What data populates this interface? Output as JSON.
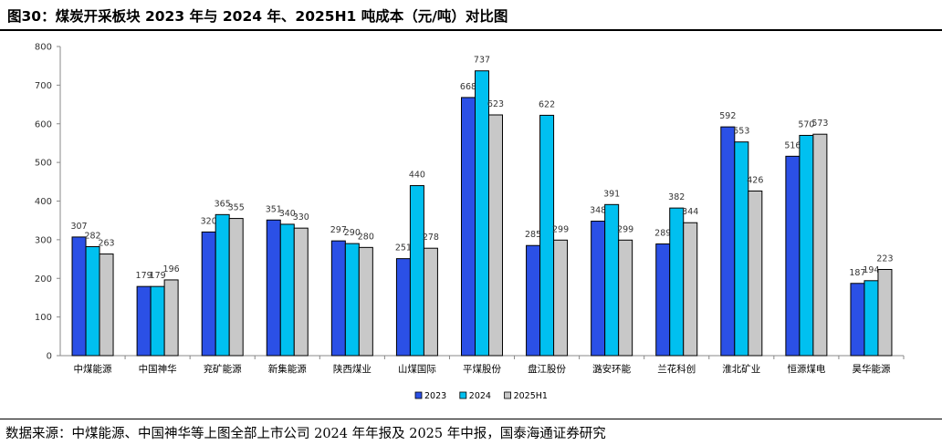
{
  "header": {
    "title": "图30：煤炭开采板块 2023 年与 2024 年、2025H1 吨成本（元/吨）对比图"
  },
  "footer": {
    "source": "数据来源：中煤能源、中国神华等上图全部上市公司 2024 年年报及 2025 年中报，国泰海通证券研究"
  },
  "colors": {
    "series": [
      "#2b50e6",
      "#00c0f0",
      "#c8c8c8"
    ],
    "stroke": "#000000"
  },
  "chart_data": {
    "type": "bar",
    "categories": [
      "中煤能源",
      "中国神华",
      "兖矿能源",
      "新集能源",
      "陕西煤业",
      "山煤国际",
      "平煤股份",
      "盘江股份",
      "潞安环能",
      "兰花科创",
      "淮北矿业",
      "恒源煤电",
      "昊华能源"
    ],
    "series": [
      {
        "name": "2023",
        "values": [
          307,
          179,
          320,
          351,
          297,
          251,
          668,
          285,
          348,
          289,
          592,
          516,
          187
        ]
      },
      {
        "name": "2024",
        "values": [
          282,
          179,
          365,
          340,
          290,
          440,
          737,
          622,
          391,
          382,
          553,
          570,
          194
        ]
      },
      {
        "name": "2025H1",
        "values": [
          263,
          196,
          355,
          330,
          280,
          278,
          623,
          299,
          299,
          344,
          426,
          573,
          223
        ]
      }
    ],
    "ylim": [
      0,
      800
    ],
    "yticks": [
      0,
      100,
      200,
      300,
      400,
      500,
      600,
      700,
      800
    ],
    "legend": "bottom-center",
    "grid": false
  }
}
